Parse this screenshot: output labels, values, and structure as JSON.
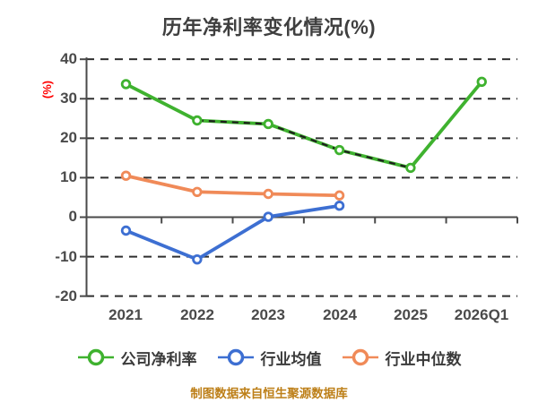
{
  "title": {
    "text": "历年净利率变化情况(%)"
  },
  "y_axis": {
    "label": "(%)",
    "label_color": "#ff0000",
    "ticks": [
      "40",
      "30",
      "20",
      "10",
      "0",
      "-10",
      "-20"
    ]
  },
  "x_axis": {
    "ticks": [
      "2021",
      "2022",
      "2023",
      "2024",
      "2025",
      "2026Q1"
    ]
  },
  "legend": {
    "items": [
      {
        "label": "公司净利率",
        "color": "#3fb22f"
      },
      {
        "label": "行业均值",
        "color": "#3d6fd2"
      },
      {
        "label": "行业中位数",
        "color": "#f08a58"
      }
    ]
  },
  "footer": {
    "text": "制图数据来自恒生聚源数据库"
  },
  "colors": {
    "background": "#ffffff",
    "title": "#3f3f3f",
    "tick_label": "#4a4a4a",
    "grid": "#2f2f2f",
    "axis": "#4a4a4a",
    "legend_text": "#3a3a3a",
    "footer_text": "#bd7f18",
    "series_company": "#3fb22f",
    "series_industry_mean": "#3d6fd2",
    "series_industry_median": "#f08a58",
    "overlay_dash": "#1e1e1e",
    "marker_fill": "#ffffff"
  },
  "chart_data": {
    "type": "line",
    "title": "历年净利率变化情况(%)",
    "ylabel": "(%)",
    "categories": [
      "2021",
      "2022",
      "2023",
      "2024",
      "2025",
      "2026Q1"
    ],
    "series": [
      {
        "name": "公司净利率",
        "color": "#3fb22f",
        "values": [
          33.7,
          24.5,
          23.6,
          17.0,
          12.5,
          34.3
        ]
      },
      {
        "name": "行业均值",
        "color": "#3d6fd2",
        "values": [
          -3.4,
          -10.7,
          0.1,
          2.9,
          null,
          null
        ]
      },
      {
        "name": "行业中位数",
        "color": "#f08a58",
        "values": [
          10.5,
          6.4,
          5.9,
          5.5,
          null,
          null
        ]
      }
    ],
    "overlay_dashed_segment": {
      "series": "公司净利率",
      "from_category": "2022",
      "to_category": "2025",
      "values": [
        24.5,
        23.6,
        17.0,
        12.5
      ],
      "style": "dark dashed stroke drawn on top of the company line"
    },
    "ylim": [
      -20,
      40
    ],
    "yticks": [
      40,
      30,
      20,
      10,
      0,
      -10,
      -20
    ],
    "grid": "horizontal dashed",
    "legend_position": "bottom",
    "marker": "circle, white fill, colored ring",
    "footer": "制图数据来自恒生聚源数据库"
  }
}
